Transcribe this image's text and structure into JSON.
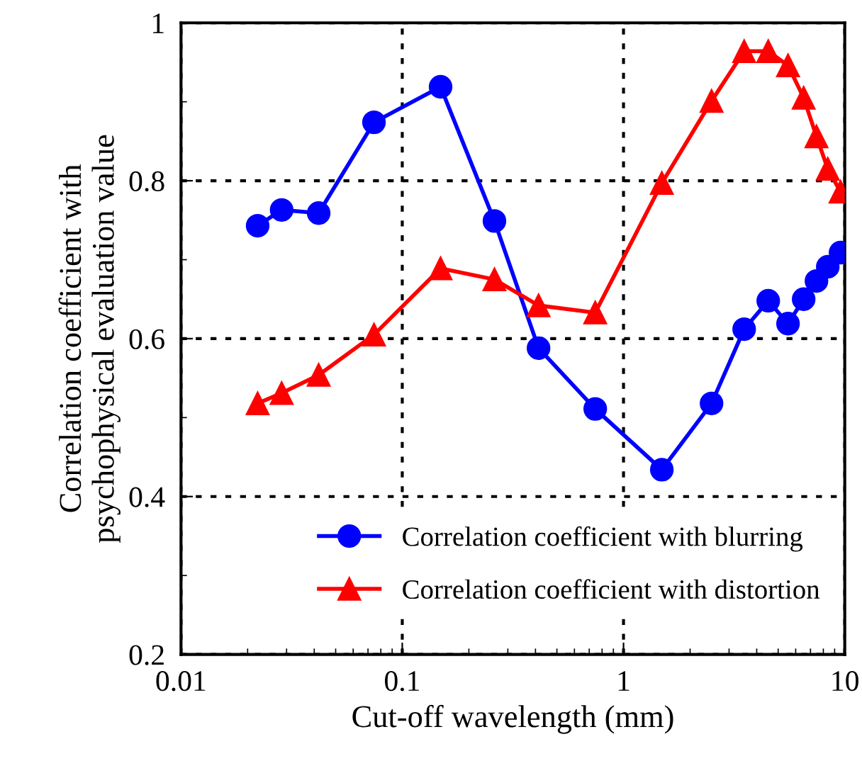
{
  "chart_data": {
    "type": "line",
    "xlabel": "Cut-off wavelength (mm)",
    "ylabel": "Correlation coefficient with\npsychophysical evaluation value",
    "log": "x",
    "xlim": [
      0.01,
      10
    ],
    "xticks": [
      0.01,
      0.1,
      1,
      10
    ],
    "ylim": [
      0.2,
      1.0
    ],
    "yticks": [
      0.2,
      {
        "value": 0.3,
        "label": null
      },
      0.4,
      {
        "value": 0.5,
        "label": null
      },
      0.6,
      {
        "value": 0.7,
        "label": null
      },
      0.8,
      {
        "value": 0.9,
        "label": null
      },
      {
        "value": 1.0,
        "label": "1"
      }
    ],
    "grid": true,
    "legend": "bottom right",
    "line_style": "solid",
    "x": [
      0.0222,
      0.0285,
      0.0419,
      0.0745,
      0.149,
      0.261,
      0.413,
      0.745,
      1.49,
      2.5,
      3.51,
      4.51,
      5.54,
      6.52,
      7.45,
      8.38,
      9.57
    ],
    "series": [
      {
        "name": "Correlation coefficient with blurring",
        "color": "#0000ff",
        "marker": "circle",
        "values": [
          0.743,
          0.763,
          0.759,
          0.874,
          0.919,
          0.749,
          0.588,
          0.511,
          0.434,
          0.518,
          0.612,
          0.648,
          0.619,
          0.65,
          0.673,
          0.691,
          0.709
        ]
      },
      {
        "name": "Correlation coefficient with distortion",
        "color": "#ff0000",
        "marker": "triangle",
        "values": [
          0.518,
          0.531,
          0.554,
          0.605,
          0.689,
          0.675,
          0.642,
          0.633,
          0.797,
          0.901,
          0.964,
          0.964,
          0.946,
          0.905,
          0.856,
          0.815,
          0.786
        ]
      }
    ]
  }
}
